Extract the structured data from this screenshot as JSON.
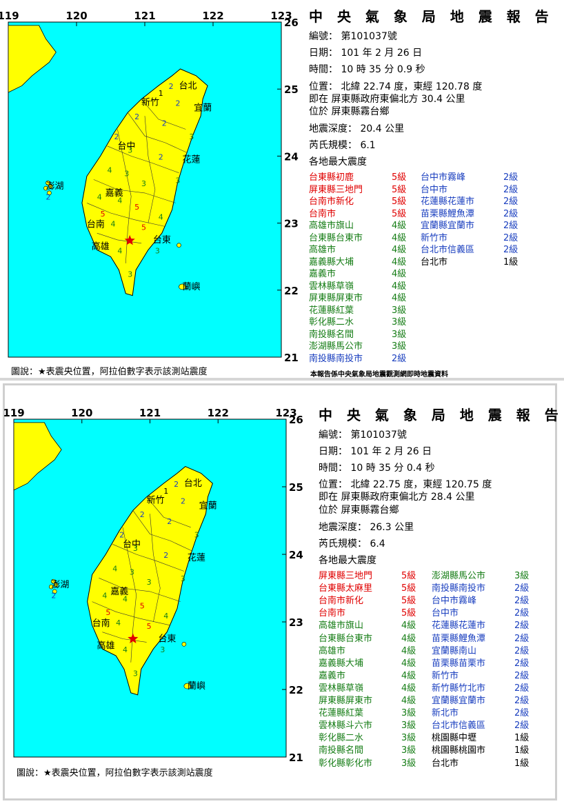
{
  "reports": [
    {
      "title": "中 央 氣 象 局 地 震 報 告",
      "number_label": "編號：",
      "number": "第101037號",
      "date_label": "日期：",
      "date": "101 年 2 月 26 日",
      "time_label": "時間：",
      "time": "10 時 35 分 0.9 秒",
      "position_label": "位置：",
      "position": "北緯 22.74 度，東經 120.78 度",
      "relative_label": "即在",
      "relative": "屏東縣政府東偏北方 30.4 公里",
      "located_label": "位於",
      "located": "屏東縣霧台鄉",
      "depth_label": "地震深度：",
      "depth": "20.4 公里",
      "magnitude_label": "芮氏規模：",
      "magnitude": "6.1",
      "max_label": "各地最大震度",
      "legend": "圖說：★表震央位置，阿拉伯數字表示該測站震度",
      "source": "本報告係中央氣象局地震觀測網即時地震資料",
      "stations_left": [
        {
          "name": "台東縣初鹿",
          "level": "5級",
          "cls": "c5"
        },
        {
          "name": "屏東縣三地門",
          "level": "5級",
          "cls": "c5"
        },
        {
          "name": "台南市新化",
          "level": "5級",
          "cls": "c5"
        },
        {
          "name": "台南市",
          "level": "5級",
          "cls": "c5"
        },
        {
          "name": "高雄市旗山",
          "level": "4級",
          "cls": "c4"
        },
        {
          "name": "台東縣台東市",
          "level": "4級",
          "cls": "c4"
        },
        {
          "name": "高雄市",
          "level": "4級",
          "cls": "c4"
        },
        {
          "name": "嘉義縣大埔",
          "level": "4級",
          "cls": "c4"
        },
        {
          "name": "嘉義市",
          "level": "4級",
          "cls": "c4"
        },
        {
          "name": "雲林縣草嶺",
          "level": "4級",
          "cls": "c4"
        },
        {
          "name": "屏東縣屏東市",
          "level": "4級",
          "cls": "c4"
        },
        {
          "name": "花蓮縣紅葉",
          "level": "3級",
          "cls": "c3"
        },
        {
          "name": "彰化縣二水",
          "level": "3級",
          "cls": "c3"
        },
        {
          "name": "南投縣名間",
          "level": "3級",
          "cls": "c3"
        },
        {
          "name": "澎湖縣馬公市",
          "level": "3級",
          "cls": "c3"
        },
        {
          "name": "南投縣南投市",
          "level": "2級",
          "cls": "c2"
        }
      ],
      "stations_right": [
        {
          "name": "台中市霧峰",
          "level": "2級",
          "cls": "c2"
        },
        {
          "name": "台中市",
          "level": "2級",
          "cls": "c2"
        },
        {
          "name": "花蓮縣花蓮市",
          "level": "2級",
          "cls": "c2"
        },
        {
          "name": "苗栗縣鯉魚潭",
          "level": "2級",
          "cls": "c2"
        },
        {
          "name": "宜蘭縣宜蘭市",
          "level": "2級",
          "cls": "c2"
        },
        {
          "name": "新竹市",
          "level": "2級",
          "cls": "c2"
        },
        {
          "name": "台北市信義區",
          "level": "2級",
          "cls": "c2"
        },
        {
          "name": "台北市",
          "level": "1級",
          "cls": "c1"
        }
      ],
      "map": {
        "lon_labels": [
          "119",
          "120",
          "121",
          "122",
          "123"
        ],
        "lat_labels": [
          "26",
          "25",
          "24",
          "23",
          "22",
          "21"
        ],
        "places": [
          "台北",
          "新竹",
          "宜蘭",
          "台中",
          "花蓮",
          "嘉義",
          "澎湖",
          "台南",
          "高雄",
          "台東",
          "蘭嶼"
        ],
        "sea_color": "#00ffff",
        "land_color": "#ffff00",
        "epicenter_color": "#e00000"
      }
    },
    {
      "title": "中 央 氣 象 局 地 震 報 告",
      "number_label": "編號：",
      "number": "第101037號",
      "date_label": "日期：",
      "date": "101 年 2 月 26 日",
      "time_label": "時間：",
      "time": "10 時 35 分 0.4 秒",
      "position_label": "位置：",
      "position": "北緯 22.75 度，東經 120.75 度",
      "relative_label": "即在",
      "relative": "屏東縣政府東偏北方 28.4 公里",
      "located_label": "位於",
      "located": "屏東縣霧台鄉",
      "depth_label": "地震深度：",
      "depth": "26.3 公里",
      "magnitude_label": "芮氏規模：",
      "magnitude": "6.4",
      "max_label": "各地最大震度",
      "legend": "圖說：★表震央位置，阿拉伯數字表示該測站震度",
      "source": "",
      "stations_left": [
        {
          "name": "屏東縣三地門",
          "level": "5級",
          "cls": "c5"
        },
        {
          "name": "台東縣太麻里",
          "level": "5級",
          "cls": "c5"
        },
        {
          "name": "台南市新化",
          "level": "5級",
          "cls": "c5"
        },
        {
          "name": "台南市",
          "level": "5級",
          "cls": "c5"
        },
        {
          "name": "高雄市旗山",
          "level": "4級",
          "cls": "c4"
        },
        {
          "name": "台東縣台東市",
          "level": "4級",
          "cls": "c4"
        },
        {
          "name": "高雄市",
          "level": "4級",
          "cls": "c4"
        },
        {
          "name": "嘉義縣大埔",
          "level": "4級",
          "cls": "c4"
        },
        {
          "name": "嘉義市",
          "level": "4級",
          "cls": "c4"
        },
        {
          "name": "雲林縣草嶺",
          "level": "4級",
          "cls": "c4"
        },
        {
          "name": "屏東縣屏東市",
          "level": "4級",
          "cls": "c4"
        },
        {
          "name": "花蓮縣紅葉",
          "level": "3級",
          "cls": "c3"
        },
        {
          "name": "雲林縣斗六市",
          "level": "3級",
          "cls": "c3"
        },
        {
          "name": "彰化縣二水",
          "level": "3級",
          "cls": "c3"
        },
        {
          "name": "南投縣名間",
          "level": "3級",
          "cls": "c3"
        },
        {
          "name": "彰化縣彰化市",
          "level": "3級",
          "cls": "c3"
        }
      ],
      "stations_right": [
        {
          "name": "澎湖縣馬公市",
          "level": "3級",
          "cls": "c3"
        },
        {
          "name": "南投縣南投市",
          "level": "2級",
          "cls": "c2"
        },
        {
          "name": "台中市霧峰",
          "level": "2級",
          "cls": "c2"
        },
        {
          "name": "台中市",
          "level": "2級",
          "cls": "c2"
        },
        {
          "name": "花蓮縣花蓮市",
          "level": "2級",
          "cls": "c2"
        },
        {
          "name": "苗栗縣鯉魚潭",
          "level": "2級",
          "cls": "c2"
        },
        {
          "name": "宜蘭縣南山",
          "level": "2級",
          "cls": "c2"
        },
        {
          "name": "苗栗縣苗栗市",
          "level": "2級",
          "cls": "c2"
        },
        {
          "name": "新竹市",
          "level": "2級",
          "cls": "c2"
        },
        {
          "name": "新竹縣竹北市",
          "level": "2級",
          "cls": "c2"
        },
        {
          "name": "宜蘭縣宜蘭市",
          "level": "2級",
          "cls": "c2"
        },
        {
          "name": "新北市",
          "level": "2級",
          "cls": "c2"
        },
        {
          "name": "台北市信義區",
          "level": "2級",
          "cls": "c2"
        },
        {
          "name": "桃園縣中壢",
          "level": "1級",
          "cls": "c1"
        },
        {
          "name": "桃園縣桃園市",
          "level": "1級",
          "cls": "c1"
        },
        {
          "name": "台北市",
          "level": "1級",
          "cls": "c1"
        }
      ],
      "map": {
        "lon_labels": [
          "119",
          "120",
          "121",
          "122",
          "123"
        ],
        "lat_labels": [
          "26",
          "25",
          "24",
          "23",
          "22",
          "21"
        ],
        "places": [
          "台北",
          "新竹",
          "宜蘭",
          "台中",
          "花蓮",
          "嘉義",
          "澎湖",
          "台南",
          "高雄",
          "台東",
          "蘭嶼"
        ],
        "sea_color": "#00ffff",
        "land_color": "#ffff00",
        "epicenter_color": "#e00000"
      }
    }
  ]
}
